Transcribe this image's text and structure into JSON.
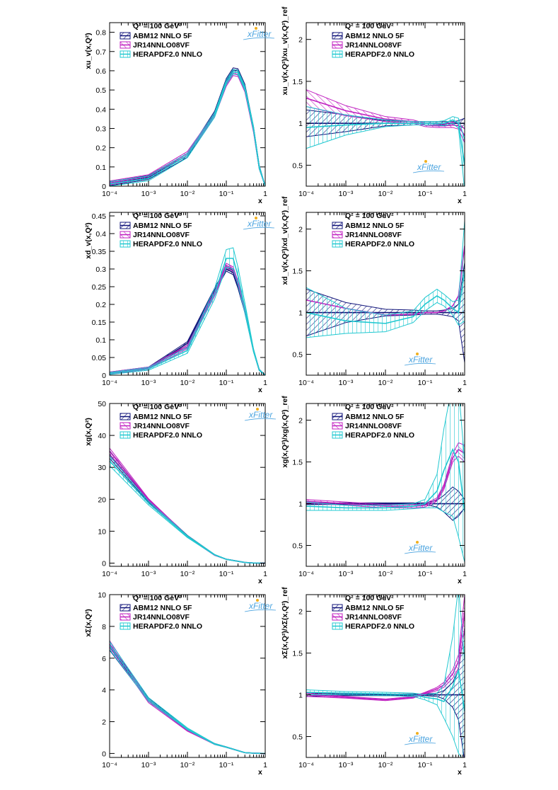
{
  "colors": {
    "ABM12 NNLO 5F": "#10147a",
    "JR14NNLO08VF": "#c020c0",
    "HERAPDF2.0 NNLO": "#20c8d0"
  },
  "legend_header": "Q² = 100 GeV²",
  "legend_items": [
    "ABM12 NNLO 5F",
    "JR14NNLO08VF",
    "HERAPDF2.0 NNLO"
  ],
  "logo_text": "xFitter",
  "x_axis_label": "x",
  "x_tick_labels": [
    "10⁻⁴",
    "10⁻³",
    "10⁻²",
    "10⁻¹",
    "1"
  ],
  "chart_data": [
    {
      "type": "line",
      "title": "",
      "xscale": "log",
      "ylabel": "xu_v(x,Q²)",
      "xlabel": "x",
      "xlim": [
        0.0001,
        1
      ],
      "ylim": [
        0,
        0.85
      ],
      "yticks": [
        0,
        0.1,
        0.2,
        0.3,
        0.4,
        0.5,
        0.6,
        0.7,
        0.8
      ],
      "yticklabels": [
        "0",
        "0.1",
        "0.2",
        "0.3",
        "0.4",
        "0.5",
        "0.6",
        "0.7",
        "0.8"
      ],
      "x": [
        0.0001,
        0.001,
        0.01,
        0.05,
        0.1,
        0.15,
        0.2,
        0.3,
        0.5,
        0.7,
        1
      ],
      "series": [
        {
          "name": "ABM12 NNLO 5F",
          "values": [
            0.013,
            0.045,
            0.16,
            0.38,
            0.55,
            0.605,
            0.6,
            0.52,
            0.3,
            0.1,
            0.0
          ],
          "band": [
            0.01,
            0.01,
            0.01,
            0.01,
            0.01,
            0.01,
            0.01,
            0.01,
            0.01,
            0.01,
            0.0
          ]
        },
        {
          "name": "JR14NNLO08VF",
          "values": [
            0.017,
            0.05,
            0.17,
            0.37,
            0.53,
            0.585,
            0.58,
            0.5,
            0.29,
            0.1,
            0.0
          ],
          "band": [
            0.01,
            0.01,
            0.01,
            0.01,
            0.01,
            0.01,
            0.01,
            0.01,
            0.01,
            0.01,
            0.0
          ]
        },
        {
          "name": "HERAPDF2.0 NNLO",
          "values": [
            0.012,
            0.04,
            0.16,
            0.37,
            0.54,
            0.595,
            0.59,
            0.51,
            0.3,
            0.1,
            0.0
          ],
          "band": [
            0.012,
            0.012,
            0.012,
            0.012,
            0.012,
            0.012,
            0.012,
            0.012,
            0.012,
            0.01,
            0.0
          ]
        }
      ]
    },
    {
      "type": "line",
      "title": "",
      "xscale": "log",
      "ylabel": "xu_v(x,Q²)/xu_v(x,Q²)_ref",
      "xlabel": "x",
      "xlim": [
        0.0001,
        1
      ],
      "ylim": [
        0.25,
        2.2
      ],
      "yticks": [
        0.5,
        1,
        1.5,
        2
      ],
      "yticklabels": [
        "0.5",
        "1",
        "1.5",
        "2"
      ],
      "x": [
        0.0001,
        0.001,
        0.01,
        0.05,
        0.1,
        0.2,
        0.3,
        0.5,
        0.7,
        1
      ],
      "series": [
        {
          "name": "ABM12 NNLO 5F",
          "values": [
            1.0,
            1.0,
            1.0,
            1.0,
            1.0,
            1.0,
            1.0,
            1.0,
            1.0,
            1.0
          ],
          "band": [
            0.16,
            0.1,
            0.03,
            0.02,
            0.02,
            0.02,
            0.02,
            0.02,
            0.03,
            0.06
          ]
        },
        {
          "name": "JR14NNLO08VF",
          "values": [
            1.3,
            1.15,
            1.05,
            1.02,
            0.98,
            0.97,
            0.97,
            0.98,
            0.97,
            0.85
          ],
          "band": [
            0.1,
            0.06,
            0.03,
            0.02,
            0.02,
            0.02,
            0.02,
            0.03,
            0.04,
            0.08
          ]
        },
        {
          "name": "HERAPDF2.0 NNLO",
          "values": [
            0.95,
            0.98,
            1.0,
            1.0,
            1.0,
            1.0,
            1.0,
            1.04,
            1.0,
            0.5
          ],
          "band": [
            0.25,
            0.12,
            0.04,
            0.02,
            0.02,
            0.02,
            0.03,
            0.04,
            0.06,
            0.3
          ]
        }
      ]
    },
    {
      "type": "line",
      "title": "",
      "xscale": "log",
      "ylabel": "xd_v(x,Q²)",
      "xlabel": "x",
      "xlim": [
        0.0001,
        1
      ],
      "ylim": [
        0,
        0.46
      ],
      "yticks": [
        0,
        0.05,
        0.1,
        0.15,
        0.2,
        0.25,
        0.3,
        0.35,
        0.4,
        0.45
      ],
      "yticklabels": [
        "0",
        "0.05",
        "0.1",
        "0.15",
        "0.2",
        "0.25",
        "0.3",
        "0.35",
        "0.4",
        "0.45"
      ],
      "x": [
        0.0001,
        0.001,
        0.01,
        0.05,
        0.1,
        0.15,
        0.2,
        0.3,
        0.5,
        0.7,
        1
      ],
      "series": [
        {
          "name": "ABM12 NNLO 5F",
          "values": [
            0.006,
            0.02,
            0.09,
            0.24,
            0.3,
            0.29,
            0.25,
            0.18,
            0.07,
            0.015,
            0.0
          ],
          "band": [
            0.003,
            0.003,
            0.005,
            0.006,
            0.006,
            0.006,
            0.005,
            0.004,
            0.003,
            0.002,
            0.0
          ]
        },
        {
          "name": "JR14NNLO08VF",
          "values": [
            0.006,
            0.02,
            0.08,
            0.23,
            0.31,
            0.3,
            0.26,
            0.18,
            0.07,
            0.015,
            0.0
          ],
          "band": [
            0.003,
            0.003,
            0.005,
            0.006,
            0.006,
            0.006,
            0.005,
            0.004,
            0.003,
            0.002,
            0.0
          ]
        },
        {
          "name": "HERAPDF2.0 NNLO",
          "values": [
            0.005,
            0.018,
            0.07,
            0.23,
            0.33,
            0.33,
            0.28,
            0.19,
            0.07,
            0.015,
            0.0
          ],
          "band": [
            0.003,
            0.004,
            0.008,
            0.015,
            0.025,
            0.03,
            0.025,
            0.015,
            0.005,
            0.002,
            0.0
          ]
        }
      ]
    },
    {
      "type": "line",
      "title": "",
      "xscale": "log",
      "ylabel": "xd_v(x,Q²)/xd_v(x,Q²)_ref",
      "xlabel": "x",
      "xlim": [
        0.0001,
        1
      ],
      "ylim": [
        0.25,
        2.2
      ],
      "yticks": [
        0.5,
        1,
        1.5,
        2
      ],
      "yticklabels": [
        "0.5",
        "1",
        "1.5",
        "2"
      ],
      "x": [
        0.0001,
        0.001,
        0.01,
        0.05,
        0.1,
        0.2,
        0.3,
        0.5,
        0.7,
        1
      ],
      "series": [
        {
          "name": "ABM12 NNLO 5F",
          "values": [
            1.0,
            1.0,
            1.0,
            1.0,
            1.0,
            1.0,
            1.0,
            1.0,
            1.0,
            1.0
          ],
          "band": [
            0.28,
            0.12,
            0.04,
            0.03,
            0.02,
            0.02,
            0.03,
            0.05,
            0.1,
            0.6
          ]
        },
        {
          "name": "JR14NNLO08VF",
          "values": [
            1.15,
            1.05,
            0.97,
            0.98,
            1.0,
            1.0,
            1.02,
            1.08,
            1.2,
            1.8
          ]
        },
        {
          "name": "HERAPDF2.0 NNLO",
          "values": [
            1.0,
            0.9,
            0.87,
            0.95,
            1.1,
            1.2,
            1.15,
            1.05,
            1.0,
            1.5
          ],
          "band": [
            0.3,
            0.15,
            0.1,
            0.07,
            0.08,
            0.08,
            0.07,
            0.08,
            0.15,
            0.6
          ]
        }
      ]
    },
    {
      "type": "line",
      "title": "",
      "xscale": "log",
      "ylabel": "xg(x,Q²)",
      "xlabel": "x",
      "xlim": [
        0.0001,
        1
      ],
      "ylim": [
        -1,
        50
      ],
      "yticks": [
        0,
        10,
        20,
        30,
        40,
        50
      ],
      "yticklabels": [
        "0",
        "10",
        "20",
        "30",
        "40",
        "50"
      ],
      "x": [
        0.0001,
        0.001,
        0.01,
        0.05,
        0.1,
        0.3,
        0.5,
        1
      ],
      "series": [
        {
          "name": "ABM12 NNLO 5F",
          "values": [
            34,
            19.5,
            8.5,
            2.6,
            1.2,
            0.2,
            0.05,
            0.0
          ],
          "band": [
            1.2,
            0.4,
            0.2,
            0.1,
            0.05,
            0.02,
            0.01,
            0.0
          ]
        },
        {
          "name": "JR14NNLO08VF",
          "values": [
            35,
            19.8,
            8.3,
            2.5,
            1.2,
            0.2,
            0.05,
            0.0
          ],
          "band": [
            1.0,
            0.4,
            0.2,
            0.1,
            0.05,
            0.02,
            0.01,
            0.0
          ]
        },
        {
          "name": "HERAPDF2.0 NNLO",
          "values": [
            32,
            18.8,
            8.3,
            2.6,
            1.2,
            0.2,
            0.05,
            0.0
          ],
          "band": [
            1.5,
            0.6,
            0.3,
            0.12,
            0.06,
            0.02,
            0.01,
            0.0
          ]
        }
      ]
    },
    {
      "type": "line",
      "title": "",
      "xscale": "log",
      "ylabel": "xg(x,Q²)/xg(x,Q²)_ref",
      "xlabel": "x",
      "xlim": [
        0.0001,
        1
      ],
      "ylim": [
        0.25,
        2.2
      ],
      "yticks": [
        0.5,
        1,
        1.5,
        2
      ],
      "yticklabels": [
        "0.5",
        "1",
        "1.5",
        "2"
      ],
      "x": [
        0.0001,
        0.001,
        0.01,
        0.05,
        0.1,
        0.2,
        0.3,
        0.5,
        0.7,
        1
      ],
      "series": [
        {
          "name": "ABM12 NNLO 5F",
          "values": [
            1.0,
            1.0,
            1.0,
            1.0,
            1.0,
            1.0,
            1.0,
            1.0,
            1.0,
            1.0
          ],
          "band": [
            0.01,
            0.01,
            0.01,
            0.01,
            0.01,
            0.04,
            0.1,
            0.2,
            0.15,
            0.05
          ]
        },
        {
          "name": "JR14NNLO08VF",
          "values": [
            1.03,
            1.0,
            0.97,
            0.97,
            0.98,
            1.05,
            1.2,
            1.55,
            1.65,
            1.6
          ],
          "band": [
            0.02,
            0.02,
            0.02,
            0.02,
            0.02,
            0.02,
            0.03,
            0.05,
            0.08,
            0.1
          ]
        },
        {
          "name": "HERAPDF2.0 NNLO",
          "values": [
            0.97,
            0.95,
            0.95,
            0.97,
            1.0,
            1.15,
            1.4,
            1.65,
            1.5,
            0.9
          ],
          "band": [
            0.05,
            0.03,
            0.03,
            0.03,
            0.05,
            0.2,
            0.5,
            0.8,
            0.9,
            0.6
          ]
        }
      ]
    },
    {
      "type": "line",
      "title": "",
      "xscale": "log",
      "ylabel": "xΣ(x,Q²)",
      "xlabel": "x",
      "xlim": [
        0.0001,
        1
      ],
      "ylim": [
        -0.25,
        10
      ],
      "yticks": [
        0,
        2,
        4,
        6,
        8,
        10
      ],
      "yticklabels": [
        "0",
        "2",
        "4",
        "6",
        "8",
        "10"
      ],
      "x": [
        0.0001,
        0.001,
        0.01,
        0.05,
        0.1,
        0.3,
        0.5,
        1
      ],
      "series": [
        {
          "name": "ABM12 NNLO 5F",
          "values": [
            6.7,
            3.4,
            1.5,
            0.6,
            0.4,
            0.05,
            0.02,
            0.0
          ],
          "band": [
            0.2,
            0.1,
            0.05,
            0.03,
            0.02,
            0.01,
            0.005,
            0.0
          ]
        },
        {
          "name": "JR14NNLO08VF",
          "values": [
            6.9,
            3.3,
            1.45,
            0.6,
            0.4,
            0.05,
            0.02,
            0.0
          ],
          "band": [
            0.2,
            0.1,
            0.05,
            0.03,
            0.02,
            0.01,
            0.005,
            0.0
          ]
        },
        {
          "name": "HERAPDF2.0 NNLO",
          "values": [
            6.8,
            3.4,
            1.55,
            0.6,
            0.4,
            0.05,
            0.02,
            0.0
          ],
          "band": [
            0.25,
            0.12,
            0.06,
            0.03,
            0.02,
            0.01,
            0.005,
            0.0
          ]
        }
      ]
    },
    {
      "type": "line",
      "title": "",
      "xscale": "log",
      "ylabel": "xΣ(x,Q²)/xΣ(x,Q²)_ref",
      "xlabel": "x",
      "xlim": [
        0.0001,
        1
      ],
      "ylim": [
        0.25,
        2.2
      ],
      "yticks": [
        0.5,
        1,
        1.5,
        2
      ],
      "yticklabels": [
        "0.5",
        "1",
        "1.5",
        "2"
      ],
      "x": [
        0.0001,
        0.001,
        0.01,
        0.05,
        0.1,
        0.2,
        0.3,
        0.5,
        0.7,
        1
      ],
      "series": [
        {
          "name": "ABM12 NNLO 5F",
          "values": [
            1.0,
            1.0,
            1.0,
            1.0,
            1.0,
            1.0,
            1.0,
            1.0,
            1.0,
            1.0
          ],
          "band": [
            0.02,
            0.01,
            0.01,
            0.01,
            0.01,
            0.02,
            0.05,
            0.15,
            0.3,
            0.8
          ]
        },
        {
          "name": "JR14NNLO08VF",
          "values": [
            1.0,
            0.97,
            0.94,
            0.97,
            1.02,
            1.07,
            1.12,
            1.25,
            1.4,
            2.0
          ],
          "band": [
            0.02,
            0.01,
            0.01,
            0.01,
            0.01,
            0.02,
            0.03,
            0.05,
            0.08,
            0.2
          ]
        },
        {
          "name": "HERAPDF2.0 NNLO",
          "values": [
            1.03,
            1.02,
            1.01,
            1.0,
            0.97,
            0.95,
            0.92,
            1.1,
            1.3,
            0.8
          ],
          "band": [
            0.03,
            0.02,
            0.02,
            0.02,
            0.03,
            0.07,
            0.2,
            0.6,
            1.0,
            0.6
          ]
        }
      ]
    }
  ]
}
